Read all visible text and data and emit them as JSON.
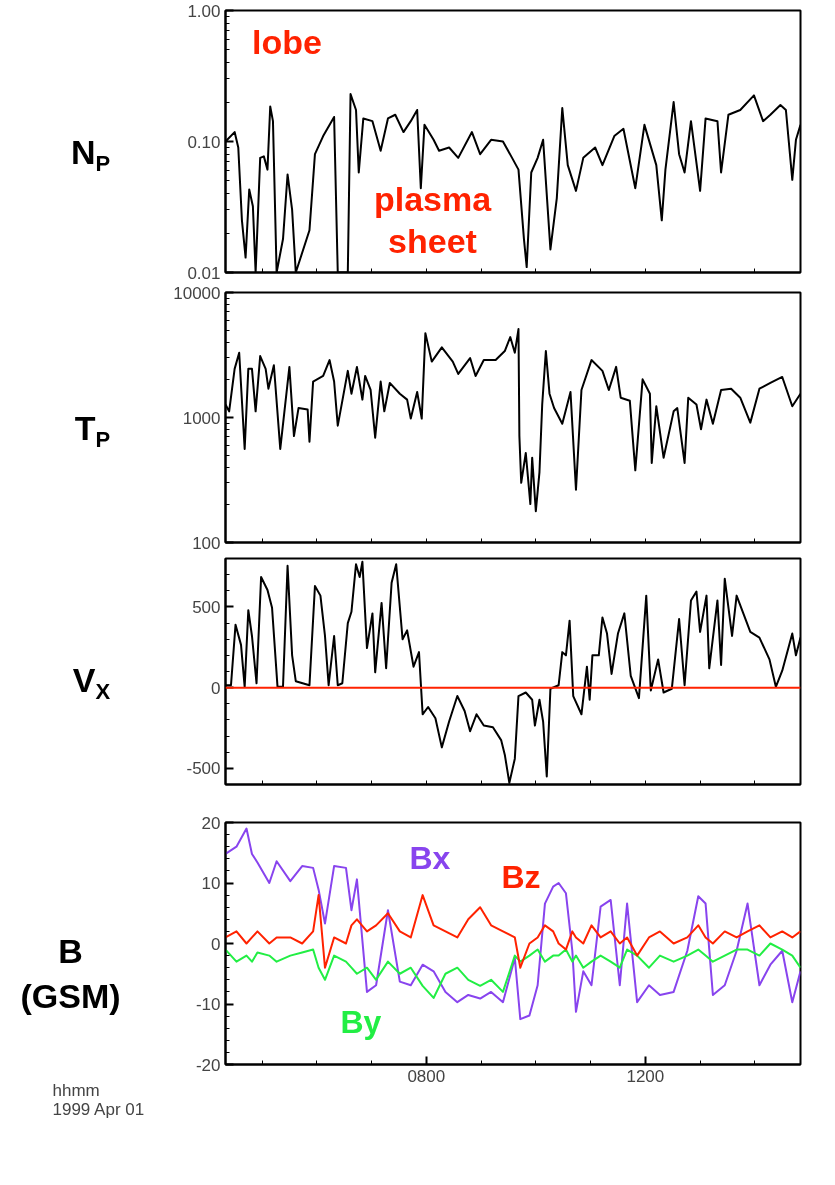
{
  "chart_data": [
    {
      "type": "line",
      "ylabel": "N$_{P}$",
      "log": true,
      "tick_labels": "y",
      "xlim": [
        "1999-04-01T04:20",
        "1999-04-01T14:50"
      ],
      "ylim": [
        0.01,
        1
      ],
      "xticks": [
        {
          "value": "1999-04-01T05:00",
          "label": null
        },
        {
          "value": "1999-04-01T06:00",
          "label": null
        },
        {
          "value": "1999-04-01T07:00",
          "label": null
        },
        {
          "value": "1999-04-01T08:00",
          "label": null
        },
        {
          "value": "1999-04-01T09:00",
          "label": null
        },
        {
          "value": "1999-04-01T10:00",
          "label": null
        },
        {
          "value": "1999-04-01T11:00",
          "label": null
        },
        {
          "value": "1999-04-01T12:00",
          "label": null
        },
        {
          "value": "1999-04-01T13:00",
          "label": null
        },
        {
          "value": "1999-04-01T14:00",
          "label": null
        }
      ],
      "yticks": [
        {
          "value": 0.01,
          "label": "0.01"
        },
        {
          "value": 0.02,
          "label": null
        },
        {
          "value": 0.03,
          "label": null
        },
        {
          "value": 0.04,
          "label": null
        },
        {
          "value": 0.05,
          "label": null
        },
        {
          "value": 0.06,
          "label": null
        },
        {
          "value": 0.07,
          "label": null
        },
        {
          "value": 0.08,
          "label": null
        },
        {
          "value": 0.09,
          "label": null
        },
        {
          "value": 0.1,
          "label": "0.10"
        },
        {
          "value": 0.2,
          "label": null
        },
        {
          "value": 0.3,
          "label": null
        },
        {
          "value": 0.4,
          "label": null
        },
        {
          "value": 0.5,
          "label": null
        },
        {
          "value": 0.6,
          "label": null
        },
        {
          "value": 0.7,
          "label": null
        },
        {
          "value": 0.8,
          "label": null
        },
        {
          "value": 0.9,
          "label": null
        },
        {
          "value": 1,
          "label": "1.00"
        }
      ],
      "annotations": [
        "lobe",
        "plasma\nsheet"
      ],
      "x": [
        "1999-04-01T04:20",
        "1999-04-01T04:30",
        "1999-04-01T04:34",
        "1999-04-01T04:38",
        "1999-04-01T04:42",
        "1999-04-01T04:46",
        "1999-04-01T04:50",
        "1999-04-01T04:53",
        "1999-04-01T04:58",
        "1999-04-01T05:02",
        "1999-04-01T05:06",
        "1999-04-01T05:09",
        "1999-04-01T05:12",
        "1999-04-01T05:16",
        "1999-04-01T05:23",
        "1999-04-01T05:28",
        "1999-04-01T05:33",
        "1999-04-01T05:37",
        "1999-04-01T05:52",
        "1999-04-01T05:58",
        "1999-04-01T06:07",
        "1999-04-01T06:19",
        "1999-04-01T06:23",
        "1999-04-01T06:34",
        "1999-04-01T06:37",
        "1999-04-01T06:43",
        "1999-04-01T06:46",
        "1999-04-01T06:51",
        "1999-04-01T07:01",
        "1999-04-01T07:10",
        "1999-04-01T07:18",
        "1999-04-01T07:26",
        "1999-04-01T07:35",
        "1999-04-01T07:43",
        "1999-04-01T07:50",
        "1999-04-01T07:54",
        "1999-04-01T07:58",
        "1999-04-01T08:08",
        "1999-04-01T08:14",
        "1999-04-01T08:25",
        "1999-04-01T08:35",
        "1999-04-01T08:50",
        "1999-04-01T08:59",
        "1999-04-01T09:11",
        "1999-04-01T09:24",
        "1999-04-01T09:34",
        "1999-04-01T09:41",
        "1999-04-01T09:47",
        "1999-04-01T09:50",
        "1999-04-01T09:55",
        "1999-04-01T10:02",
        "1999-04-01T10:08",
        "1999-04-01T10:16",
        "1999-04-01T10:23",
        "1999-04-01T10:29",
        "1999-04-01T10:35",
        "1999-04-01T10:44",
        "1999-04-01T10:52",
        "1999-04-01T11:05",
        "1999-04-01T11:13",
        "1999-04-01T11:26",
        "1999-04-01T11:36",
        "1999-04-01T11:49",
        "1999-04-01T11:59",
        "1999-04-01T12:12",
        "1999-04-01T12:18",
        "1999-04-01T12:22",
        "1999-04-01T12:31",
        "1999-04-01T12:37",
        "1999-04-01T12:43",
        "1999-04-01T12:50",
        "1999-04-01T13:00",
        "1999-04-01T13:06",
        "1999-04-01T13:19",
        "1999-04-01T13:23",
        "1999-04-01T13:31",
        "1999-04-01T13:44",
        "1999-04-01T13:59",
        "1999-04-01T14:09",
        "1999-04-01T14:17",
        "1999-04-01T14:28",
        "1999-04-01T14:34",
        "1999-04-01T14:41",
        "1999-04-01T14:45",
        "1999-04-01T14:50"
      ],
      "series": [
        {
          "color": "#000000",
          "values": [
            0.1,
            0.118,
            0.09,
            0.025,
            0.013,
            0.043,
            0.032,
            0.01,
            0.075,
            0.077,
            0.061,
            0.185,
            0.143,
            0.01,
            0.018,
            0.056,
            0.03,
            0.01,
            0.021,
            0.08,
            0.11,
            0.154,
            0.01,
            0.01,
            0.23,
            0.174,
            0.058,
            0.15,
            0.143,
            0.085,
            0.15,
            0.16,
            0.118,
            0.143,
            0.174,
            0.044,
            0.134,
            0.103,
            0.085,
            0.09,
            0.075,
            0.118,
            0.08,
            0.103,
            0.1,
            0.075,
            0.061,
            0.018,
            0.011,
            0.058,
            0.075,
            0.103,
            0.015,
            0.037,
            0.18,
            0.066,
            0.042,
            0.075,
            0.09,
            0.066,
            0.11,
            0.125,
            0.044,
            0.134,
            0.066,
            0.025,
            0.061,
            0.2,
            0.08,
            0.058,
            0.143,
            0.042,
            0.15,
            0.143,
            0.058,
            0.16,
            0.174,
            0.225,
            0.143,
            0.16,
            0.19,
            0.174,
            0.051,
            0.103,
            0.134
          ]
        }
      ]
    },
    {
      "type": "line",
      "ylabel": "T$_{P}$",
      "log": true,
      "tick_labels": "y",
      "xlim": [
        "1999-04-01T04:20",
        "1999-04-01T14:50"
      ],
      "ylim": [
        100,
        10000
      ],
      "xticks": [
        {
          "value": "1999-04-01T05:00",
          "label": null
        },
        {
          "value": "1999-04-01T06:00",
          "label": null
        },
        {
          "value": "1999-04-01T07:00",
          "label": null
        },
        {
          "value": "1999-04-01T08:00",
          "label": null
        },
        {
          "value": "1999-04-01T09:00",
          "label": null
        },
        {
          "value": "1999-04-01T10:00",
          "label": null
        },
        {
          "value": "1999-04-01T11:00",
          "label": null
        },
        {
          "value": "1999-04-01T12:00",
          "label": null
        },
        {
          "value": "1999-04-01T13:00",
          "label": null
        },
        {
          "value": "1999-04-01T14:00",
          "label": null
        }
      ],
      "yticks": [
        100,
        {
          "value": 200,
          "label": null
        },
        {
          "value": 300,
          "label": null
        },
        {
          "value": 400,
          "label": null
        },
        {
          "value": 500,
          "label": null
        },
        {
          "value": 600,
          "label": null
        },
        {
          "value": 700,
          "label": null
        },
        {
          "value": 800,
          "label": null
        },
        {
          "value": 900,
          "label": null
        },
        1000,
        {
          "value": 2000,
          "label": null
        },
        {
          "value": 3000,
          "label": null
        },
        {
          "value": 4000,
          "label": null
        },
        {
          "value": 5000,
          "label": null
        },
        {
          "value": 6000,
          "label": null
        },
        {
          "value": 7000,
          "label": null
        },
        {
          "value": 8000,
          "label": null
        },
        {
          "value": 9000,
          "label": null
        },
        10000
      ],
      "x": [
        "1999-04-01T04:20",
        "1999-04-01T04:24",
        "1999-04-01T04:30",
        "1999-04-01T04:35",
        "1999-04-01T04:41",
        "1999-04-01T04:45",
        "1999-04-01T04:49",
        "1999-04-01T04:53",
        "1999-04-01T04:58",
        "1999-04-01T05:04",
        "1999-04-01T05:07",
        "1999-04-01T05:13",
        "1999-04-01T05:20",
        "1999-04-01T05:30",
        "1999-04-01T05:35",
        "1999-04-01T05:40",
        "1999-04-01T05:50",
        "1999-04-01T05:52",
        "1999-04-01T05:56",
        "1999-04-01T06:07",
        "1999-04-01T06:14",
        "1999-04-01T06:19",
        "1999-04-01T06:23",
        "1999-04-01T06:28",
        "1999-04-01T06:34",
        "1999-04-01T06:38",
        "1999-04-01T06:44",
        "1999-04-01T06:50",
        "1999-04-01T06:53",
        "1999-04-01T06:59",
        "1999-04-01T07:04",
        "1999-04-01T07:10",
        "1999-04-01T07:14",
        "1999-04-01T07:20",
        "1999-04-01T07:31",
        "1999-04-01T07:39",
        "1999-04-01T07:43",
        "1999-04-01T07:50",
        "1999-04-01T07:55",
        "1999-04-01T07:59",
        "1999-04-01T08:06",
        "1999-04-01T08:17",
        "1999-04-01T08:29",
        "1999-04-01T08:35",
        "1999-04-01T08:48",
        "1999-04-01T08:54",
        "1999-04-01T09:03",
        "1999-04-01T09:16",
        "1999-04-01T09:26",
        "1999-04-01T09:32",
        "1999-04-01T09:37",
        "1999-04-01T09:41",
        "1999-04-01T09:42",
        "1999-04-01T09:44",
        "1999-04-01T09:49",
        "1999-04-01T09:54",
        "1999-04-01T09:56",
        "1999-04-01T10:00",
        "1999-04-01T10:04",
        "1999-04-01T10:07",
        "1999-04-01T10:11",
        "1999-04-01T10:15",
        "1999-04-01T10:20",
        "1999-04-01T10:29",
        "1999-04-01T10:38",
        "1999-04-01T10:44",
        "1999-04-01T10:50",
        "1999-04-01T11:01",
        "1999-04-01T11:13",
        "1999-04-01T11:20",
        "1999-04-01T11:28",
        "1999-04-01T11:33",
        "1999-04-01T11:43",
        "1999-04-01T11:49",
        "1999-04-01T11:57",
        "1999-04-01T12:05",
        "1999-04-01T12:07",
        "1999-04-01T12:12",
        "1999-04-01T12:20",
        "1999-04-01T12:31",
        "1999-04-01T12:35",
        "1999-04-01T12:43",
        "1999-04-01T12:47",
        "1999-04-01T12:56",
        "1999-04-01T13:01",
        "1999-04-01T13:07",
        "1999-04-01T13:14",
        "1999-04-01T13:23",
        "1999-04-01T13:34",
        "1999-04-01T13:44",
        "1999-04-01T13:55",
        "1999-04-01T14:05",
        "1999-04-01T14:17",
        "1999-04-01T14:30",
        "1999-04-01T14:41",
        "1999-04-01T14:50"
      ],
      "series": [
        {
          "color": "#000000",
          "values": [
            1270,
            1120,
            2450,
            3300,
            560,
            2450,
            2450,
            1120,
            3100,
            2450,
            1700,
            2620,
            560,
            2540,
            710,
            1190,
            1160,
            640,
            1940,
            2150,
            2880,
            1940,
            860,
            1360,
            2360,
            1550,
            2540,
            1390,
            2150,
            1660,
            690,
            1940,
            1120,
            1890,
            1550,
            1390,
            980,
            1600,
            980,
            4730,
            2800,
            3640,
            2800,
            2230,
            2990,
            2150,
            2880,
            2880,
            3400,
            4400,
            3300,
            5100,
            710,
            300,
            520,
            203,
            477,
            178,
            366,
            1270,
            3400,
            1550,
            1190,
            890,
            1600,
            264,
            1660,
            2880,
            2360,
            1660,
            2540,
            1440,
            1360,
            378,
            2020,
            1550,
            433,
            1230,
            477,
            1120,
            1190,
            433,
            1440,
            1270,
            805,
            1390,
            890,
            1660,
            1700,
            1440,
            910,
            1700,
            1890,
            2110,
            1230,
            1550
          ]
        }
      ]
    },
    {
      "type": "line",
      "ylabel": "V$_{X}$",
      "tick_labels": "y",
      "xlim": [
        "1999-04-01T04:20",
        "1999-04-01T14:50"
      ],
      "ylim": [
        -600,
        800
      ],
      "xticks": [
        {
          "value": "1999-04-01T05:00",
          "label": null
        },
        {
          "value": "1999-04-01T06:00",
          "label": null
        },
        {
          "value": "1999-04-01T07:00",
          "label": null
        },
        {
          "value": "1999-04-01T08:00",
          "label": null
        },
        {
          "value": "1999-04-01T09:00",
          "label": null
        },
        {
          "value": "1999-04-01T10:00",
          "label": null
        },
        {
          "value": "1999-04-01T11:00",
          "label": null
        },
        {
          "value": "1999-04-01T12:00",
          "label": null
        },
        {
          "value": "1999-04-01T13:00",
          "label": null
        },
        {
          "value": "1999-04-01T14:00",
          "label": null
        }
      ],
      "yticks": [
        {
          "value": -600,
          "label": null
        },
        -500,
        {
          "value": -400,
          "label": null
        },
        {
          "value": -300,
          "label": null
        },
        {
          "value": -200,
          "label": null
        },
        {
          "value": -100,
          "label": null
        },
        0,
        {
          "value": 100,
          "label": null
        },
        {
          "value": 200,
          "label": null
        },
        {
          "value": 300,
          "label": null
        },
        {
          "value": 400,
          "label": null
        },
        500,
        {
          "value": 600,
          "label": null
        },
        {
          "value": 700,
          "label": null
        }
      ],
      "ref_lines": [
        {
          "axis": "y",
          "value": 0,
          "color": "#ff2200"
        }
      ],
      "x": [
        "1999-04-01T04:20",
        "1999-04-01T04:26",
        "1999-04-01T04:31",
        "1999-04-01T04:37",
        "1999-04-01T04:41",
        "1999-04-01T04:45",
        "1999-04-01T04:49",
        "1999-04-01T04:54",
        "1999-04-01T04:59",
        "1999-04-01T05:06",
        "1999-04-01T05:11",
        "1999-04-01T05:17",
        "1999-04-01T05:23",
        "1999-04-01T05:28",
        "1999-04-01T05:33",
        "1999-04-01T05:37",
        "1999-04-01T05:52",
        "1999-04-01T05:58",
        "1999-04-01T06:04",
        "1999-04-01T06:09",
        "1999-04-01T06:13",
        "1999-04-01T06:19",
        "1999-04-01T06:23",
        "1999-04-01T06:28",
        "1999-04-01T06:34",
        "1999-04-01T06:38",
        "1999-04-01T06:43",
        "1999-04-01T06:47",
        "1999-04-01T06:50",
        "1999-04-01T06:55",
        "1999-04-01T07:01",
        "1999-04-01T07:04",
        "1999-04-01T07:11",
        "1999-04-01T07:16",
        "1999-04-01T07:22",
        "1999-04-01T07:27",
        "1999-04-01T07:34",
        "1999-04-01T07:39",
        "1999-04-01T07:46",
        "1999-04-01T07:52",
        "1999-04-01T07:56",
        "1999-04-01T08:02",
        "1999-04-01T08:10",
        "1999-04-01T08:17",
        "1999-04-01T08:25",
        "1999-04-01T08:34",
        "1999-04-01T08:42",
        "1999-04-01T08:48",
        "1999-04-01T08:55",
        "1999-04-01T09:03",
        "1999-04-01T09:13",
        "1999-04-01T09:22",
        "1999-04-01T09:26",
        "1999-04-01T09:31",
        "1999-04-01T09:37",
        "1999-04-01T09:41",
        "1999-04-01T09:49",
        "1999-04-01T09:56",
        "1999-04-01T09:59",
        "1999-04-01T10:04",
        "1999-04-01T10:08",
        "1999-04-01T10:12",
        "1999-04-01T10:16",
        "1999-04-01T10:25",
        "1999-04-01T10:29",
        "1999-04-01T10:33",
        "1999-04-01T10:37",
        "1999-04-01T10:41",
        "1999-04-01T10:50",
        "1999-04-01T10:56",
        "1999-04-01T10:59",
        "1999-04-01T11:02",
        "1999-04-01T11:09",
        "1999-04-01T11:13",
        "1999-04-01T11:18",
        "1999-04-01T11:23",
        "1999-04-01T11:30",
        "1999-04-01T11:37",
        "1999-04-01T11:44",
        "1999-04-01T11:53",
        "1999-04-01T12:01",
        "1999-04-01T12:06",
        "1999-04-01T12:14",
        "1999-04-01T12:20",
        "1999-04-01T12:29",
        "1999-04-01T12:37",
        "1999-04-01T12:43",
        "1999-04-01T12:50",
        "1999-04-01T12:56",
        "1999-04-01T13:00",
        "1999-04-01T13:07",
        "1999-04-01T13:10",
        "1999-04-01T13:19",
        "1999-04-01T13:23",
        "1999-04-01T13:27",
        "1999-04-01T13:35",
        "1999-04-01T13:40",
        "1999-04-01T13:55",
        "1999-04-01T14:05",
        "1999-04-01T14:16",
        "1999-04-01T14:23",
        "1999-04-01T14:30",
        "1999-04-01T14:41",
        "1999-04-01T14:45",
        "1999-04-01T14:50"
      ],
      "series": [
        {
          "color": "#000000",
          "values": [
            15,
            15,
            390,
            265,
            5,
            480,
            320,
            27,
            685,
            605,
            495,
            5,
            5,
            755,
            200,
            40,
            15,
            630,
            570,
            320,
            15,
            320,
            15,
            27,
            400,
            470,
            765,
            685,
            780,
            245,
            460,
            95,
            525,
            120,
            650,
            765,
            300,
            355,
            130,
            220,
            -165,
            -120,
            -190,
            -370,
            -210,
            -52,
            -145,
            -270,
            -165,
            -235,
            -245,
            -325,
            -415,
            -590,
            -440,
            -52,
            -30,
            -75,
            -235,
            -75,
            -210,
            -550,
            -7,
            15,
            220,
            200,
            415,
            -52,
            -165,
            130,
            -75,
            200,
            200,
            435,
            335,
            85,
            335,
            460,
            73,
            -65,
            570,
            -18,
            175,
            -30,
            -7,
            425,
            15,
            540,
            595,
            345,
            570,
            120,
            540,
            140,
            675,
            320,
            570,
            345,
            310,
            175,
            5,
            105,
            335,
            200,
            310
          ]
        }
      ]
    },
    {
      "type": "line",
      "ylabel": "B (GSM)",
      "xlim": [
        "1999-04-01T04:20",
        "1999-04-01T14:50"
      ],
      "ylim": [
        -20,
        20
      ],
      "xticks": [
        {
          "value": "1999-04-01T05:00",
          "label": null
        },
        {
          "value": "1999-04-01T06:00",
          "label": null
        },
        {
          "value": "1999-04-01T07:00",
          "label": null
        },
        {
          "value": "1999-04-01T08:00",
          "label": "0800"
        },
        {
          "value": "1999-04-01T09:00",
          "label": null
        },
        {
          "value": "1999-04-01T10:00",
          "label": null
        },
        {
          "value": "1999-04-01T11:00",
          "label": null
        },
        {
          "value": "1999-04-01T12:00",
          "label": "1200"
        },
        {
          "value": "1999-04-01T13:00",
          "label": null
        },
        {
          "value": "1999-04-01T14:00",
          "label": null
        }
      ],
      "yticks": [
        -20,
        {
          "value": -18,
          "label": null
        },
        {
          "value": -16,
          "label": null
        },
        {
          "value": -14,
          "label": null
        },
        {
          "value": -12,
          "label": null
        },
        -10,
        {
          "value": -8,
          "label": null
        },
        {
          "value": -6,
          "label": null
        },
        {
          "value": -4,
          "label": null
        },
        {
          "value": -2,
          "label": null
        },
        0,
        {
          "value": 2,
          "label": null
        },
        {
          "value": 4,
          "label": null
        },
        {
          "value": 6,
          "label": null
        },
        {
          "value": 8,
          "label": null
        },
        10,
        {
          "value": 12,
          "label": null
        },
        {
          "value": 14,
          "label": null
        },
        {
          "value": 16,
          "label": null
        },
        {
          "value": 18,
          "label": null
        },
        20
      ],
      "annotations": [
        "hhmm",
        "1999 Apr 01"
      ],
      "x": [
        "1999-04-01T04:20",
        "1999-04-01T04:32",
        "1999-04-01T04:43",
        "1999-04-01T04:49",
        "1999-04-01T04:55",
        "1999-04-01T05:08",
        "1999-04-01T05:16",
        "1999-04-01T05:31",
        "1999-04-01T05:44",
        "1999-04-01T05:56",
        "1999-04-01T06:02",
        "1999-04-01T06:09",
        "1999-04-01T06:19",
        "1999-04-01T06:32",
        "1999-04-01T06:38",
        "1999-04-01T06:44",
        "1999-04-01T06:55",
        "1999-04-01T07:05",
        "1999-04-01T07:18",
        "1999-04-01T07:31",
        "1999-04-01T07:43",
        "1999-04-01T07:56",
        "1999-04-01T08:08",
        "1999-04-01T08:21",
        "1999-04-01T08:34",
        "1999-04-01T08:46",
        "1999-04-01T08:59",
        "1999-04-01T09:11",
        "1999-04-01T09:24",
        "1999-04-01T09:37",
        "1999-04-01T09:43",
        "1999-04-01T09:53",
        "1999-04-01T10:02",
        "1999-04-01T10:10",
        "1999-04-01T10:19",
        "1999-04-01T10:25",
        "1999-04-01T10:33",
        "1999-04-01T10:40",
        "1999-04-01T10:44",
        "1999-04-01T10:52",
        "1999-04-01T11:01",
        "1999-04-01T11:11",
        "1999-04-01T11:22",
        "1999-04-01T11:32",
        "1999-04-01T11:40",
        "1999-04-01T11:51",
        "1999-04-01T12:04",
        "1999-04-01T12:16",
        "1999-04-01T12:31",
        "1999-04-01T12:46",
        "1999-04-01T12:58",
        "1999-04-01T13:06",
        "1999-04-01T13:14",
        "1999-04-01T13:27",
        "1999-04-01T13:40",
        "1999-04-01T13:52",
        "1999-04-01T14:05",
        "1999-04-01T14:17",
        "1999-04-01T14:30",
        "1999-04-01T14:41",
        "1999-04-01T14:50"
      ],
      "series": [
        {
          "name": "Bx",
          "color": "#8844ee",
          "values": [
            14.8,
            16,
            19,
            14.8,
            13.4,
            10,
            13.6,
            10.3,
            12.8,
            12.5,
            8.9,
            3.3,
            12.8,
            12.5,
            5.5,
            10.6,
            -8,
            -6.9,
            5.5,
            -6.3,
            -6.9,
            -3.5,
            -4.6,
            -8,
            -9.7,
            -8.5,
            -9.1,
            -8,
            -9.7,
            -2.4,
            -12.5,
            -11.9,
            -6.9,
            6.6,
            9.4,
            10,
            8.3,
            -1.2,
            -11.3,
            -4.6,
            -6.9,
            6.1,
            7.2,
            -6.9,
            6.6,
            -9.7,
            -6.9,
            -8.5,
            -8,
            -1.2,
            7.8,
            6.6,
            -8.5,
            -6.9,
            -1.2,
            6.6,
            -6.9,
            -3.5,
            -1.2,
            -9.7,
            -4.6
          ]
        },
        {
          "name": "By",
          "color": "#22ee44",
          "values": [
            -1,
            -3,
            -2,
            -3,
            -1.5,
            -2,
            -3,
            -2,
            -1.5,
            -1,
            -4,
            -6,
            -2,
            -3,
            -4,
            -5,
            -4,
            -6,
            -3,
            -5,
            -4,
            -7,
            -9,
            -5,
            -4,
            -6,
            -7,
            -6,
            -8,
            -2,
            -3,
            -2,
            -1,
            -3,
            -2,
            -2,
            -1,
            -3,
            -2,
            -4,
            -3,
            -2,
            -3,
            -4,
            -1,
            -2,
            -4,
            -2,
            -3,
            -2,
            -1,
            -2,
            -3,
            -2,
            -1,
            -1,
            -2,
            0,
            -1,
            -2,
            -4
          ]
        },
        {
          "name": "Bz",
          "color": "#ff2200",
          "values": [
            1,
            2,
            0,
            1,
            2,
            0,
            1,
            1,
            0,
            2,
            8,
            -4,
            1,
            0,
            3,
            4,
            2,
            3,
            5,
            2,
            1,
            8,
            3,
            2,
            1,
            4,
            6,
            3,
            2,
            1,
            -4,
            0,
            1,
            3,
            2,
            0,
            -1,
            2,
            1,
            0,
            3,
            1,
            2,
            0,
            1,
            -2,
            1,
            2,
            0,
            1,
            3,
            1,
            0,
            2,
            1,
            2,
            3,
            1,
            2,
            1,
            2
          ]
        }
      ]
    }
  ]
}
